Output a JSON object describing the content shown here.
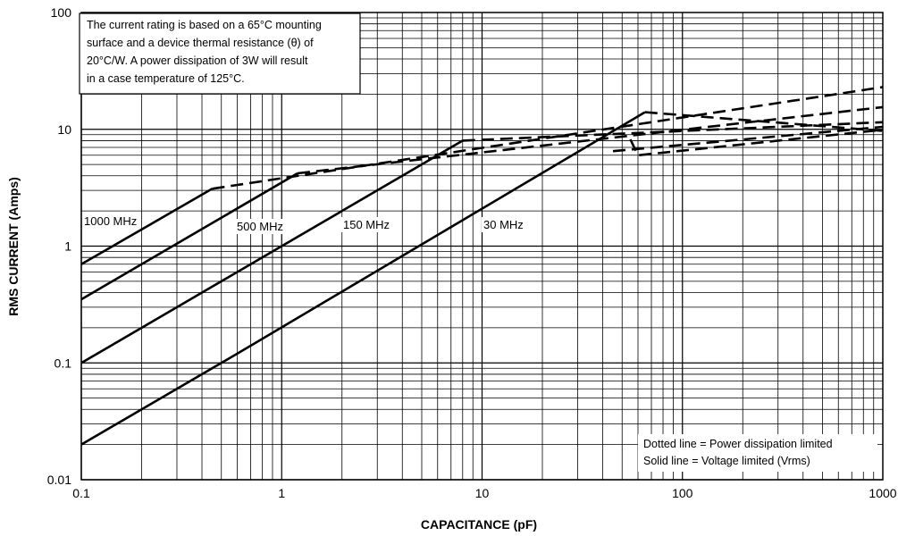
{
  "chart_data": {
    "type": "line",
    "x_scale": "log",
    "y_scale": "log",
    "xlim": [
      0.1,
      1000
    ],
    "ylim": [
      0.01,
      100
    ],
    "grid": true,
    "xlabel": "CAPACITANCE (pF)",
    "ylabel": "RMS CURRENT (Amps)",
    "x_ticks": [
      "0.1",
      "1",
      "10",
      "100",
      "1000"
    ],
    "y_ticks": [
      "0.01",
      "0.1",
      "1",
      "10",
      "100"
    ],
    "note": [
      "The current rating is based on a 65°C mounting",
      "surface and a device thermal resistance (θ) of",
      "20°C/W. A power dissipation of 3W will result",
      "in a case temperature of 125°C."
    ],
    "legend": [
      "Dotted line = Power dissipation limited",
      "Solid line = Voltage limited (Vrms)"
    ],
    "series": [
      {
        "name": "1000 MHz",
        "voltage_limited": [
          [
            0.1,
            0.7
          ],
          [
            0.45,
            3.1
          ]
        ],
        "power_limited": [
          [
            0.45,
            3.1
          ],
          [
            1000,
            23
          ]
        ]
      },
      {
        "name": "500 MHz",
        "voltage_limited": [
          [
            0.1,
            0.35
          ],
          [
            1.2,
            4.2
          ]
        ],
        "power_limited": [
          [
            1.2,
            4.2
          ],
          [
            1000,
            15.5
          ]
        ]
      },
      {
        "name": "150 MHz",
        "voltage_limited": [
          [
            0.1,
            0.1
          ],
          [
            8,
            8
          ]
        ],
        "power_limited": [
          [
            8,
            8
          ],
          [
            1000,
            11.5
          ]
        ]
      },
      {
        "name": "30 MHz",
        "voltage_limited": [
          [
            0.1,
            0.02
          ],
          [
            0.6,
            0.12
          ],
          [
            65,
            14
          ]
        ],
        "power_limited": [
          [
            65,
            14
          ],
          [
            1000,
            9.7
          ]
        ]
      }
    ],
    "extra_dashed_segments": [
      [
        [
          55,
          8.2
        ],
        [
          60,
          6.0
        ],
        [
          1000,
          9.9
        ]
      ],
      [
        [
          45,
          6.5
        ],
        [
          1000,
          10.5
        ]
      ]
    ]
  }
}
